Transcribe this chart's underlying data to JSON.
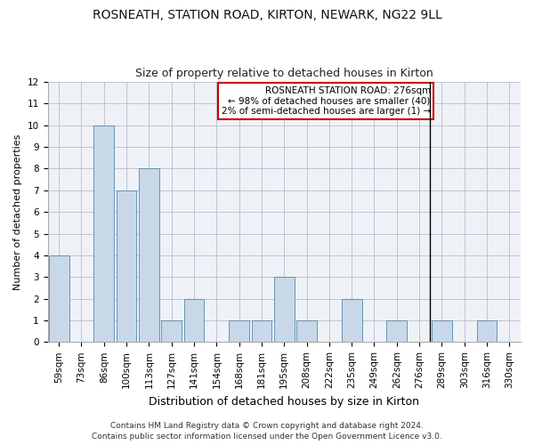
{
  "title": "ROSNEATH, STATION ROAD, KIRTON, NEWARK, NG22 9LL",
  "subtitle": "Size of property relative to detached houses in Kirton",
  "xlabel": "Distribution of detached houses by size in Kirton",
  "ylabel": "Number of detached properties",
  "categories": [
    "59sqm",
    "73sqm",
    "86sqm",
    "100sqm",
    "113sqm",
    "127sqm",
    "141sqm",
    "154sqm",
    "168sqm",
    "181sqm",
    "195sqm",
    "208sqm",
    "222sqm",
    "235sqm",
    "249sqm",
    "262sqm",
    "276sqm",
    "289sqm",
    "303sqm",
    "316sqm",
    "330sqm"
  ],
  "values": [
    4,
    0,
    10,
    7,
    8,
    1,
    2,
    0,
    1,
    1,
    3,
    1,
    0,
    2,
    0,
    1,
    0,
    1,
    0,
    1,
    0
  ],
  "bar_color": "#c8d8e8",
  "bar_edge_color": "#5588aa",
  "highlight_index": 16,
  "highlight_line_color": "#000000",
  "annotation_box_color": "#cc0000",
  "annotation_text": "ROSNEATH STATION ROAD: 276sqm\n← 98% of detached houses are smaller (40)\n2% of semi-detached houses are larger (1) →",
  "ylim": [
    0,
    12
  ],
  "yticks": [
    0,
    1,
    2,
    3,
    4,
    5,
    6,
    7,
    8,
    9,
    10,
    11,
    12
  ],
  "footer": "Contains HM Land Registry data © Crown copyright and database right 2024.\nContains public sector information licensed under the Open Government Licence v3.0.",
  "background_color": "#eef2f7",
  "title_fontsize": 10,
  "subtitle_fontsize": 9,
  "xlabel_fontsize": 9,
  "ylabel_fontsize": 8,
  "tick_fontsize": 7.5,
  "footer_fontsize": 6.5,
  "annotation_fontsize": 7.5
}
